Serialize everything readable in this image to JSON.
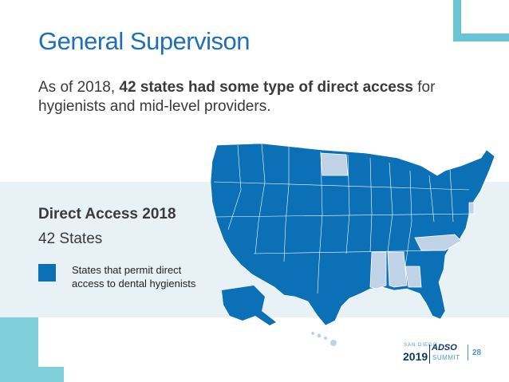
{
  "slide": {
    "title": "General Supervison",
    "lead_prefix": "As of 2018,",
    "lead_bold": "42 states had some type of direct access",
    "lead_suffix": "for hygienists and mid-level providers.",
    "subhead": "Direct Access 2018",
    "count": "42 States",
    "legend_label": "States that permit direct access to dental hygienists",
    "page_number": "28"
  },
  "logo": {
    "top_text": "SAN DIEGO",
    "year": "2019",
    "brand": "ADSO",
    "summit": "SUMMIT"
  },
  "colors": {
    "accent": "#1f6fb5",
    "permit_state": "#0b70b5",
    "non_permit_state": "#bfd2e6",
    "band": "#e8f2f6",
    "teal_decor": "#6bc4d3"
  },
  "map": {
    "caption": "US map of direct access states",
    "non_permit_states": [
      "North Dakota",
      "Mississippi",
      "Alabama",
      "Georgia (partial)",
      "North Carolina",
      "Delaware"
    ]
  }
}
